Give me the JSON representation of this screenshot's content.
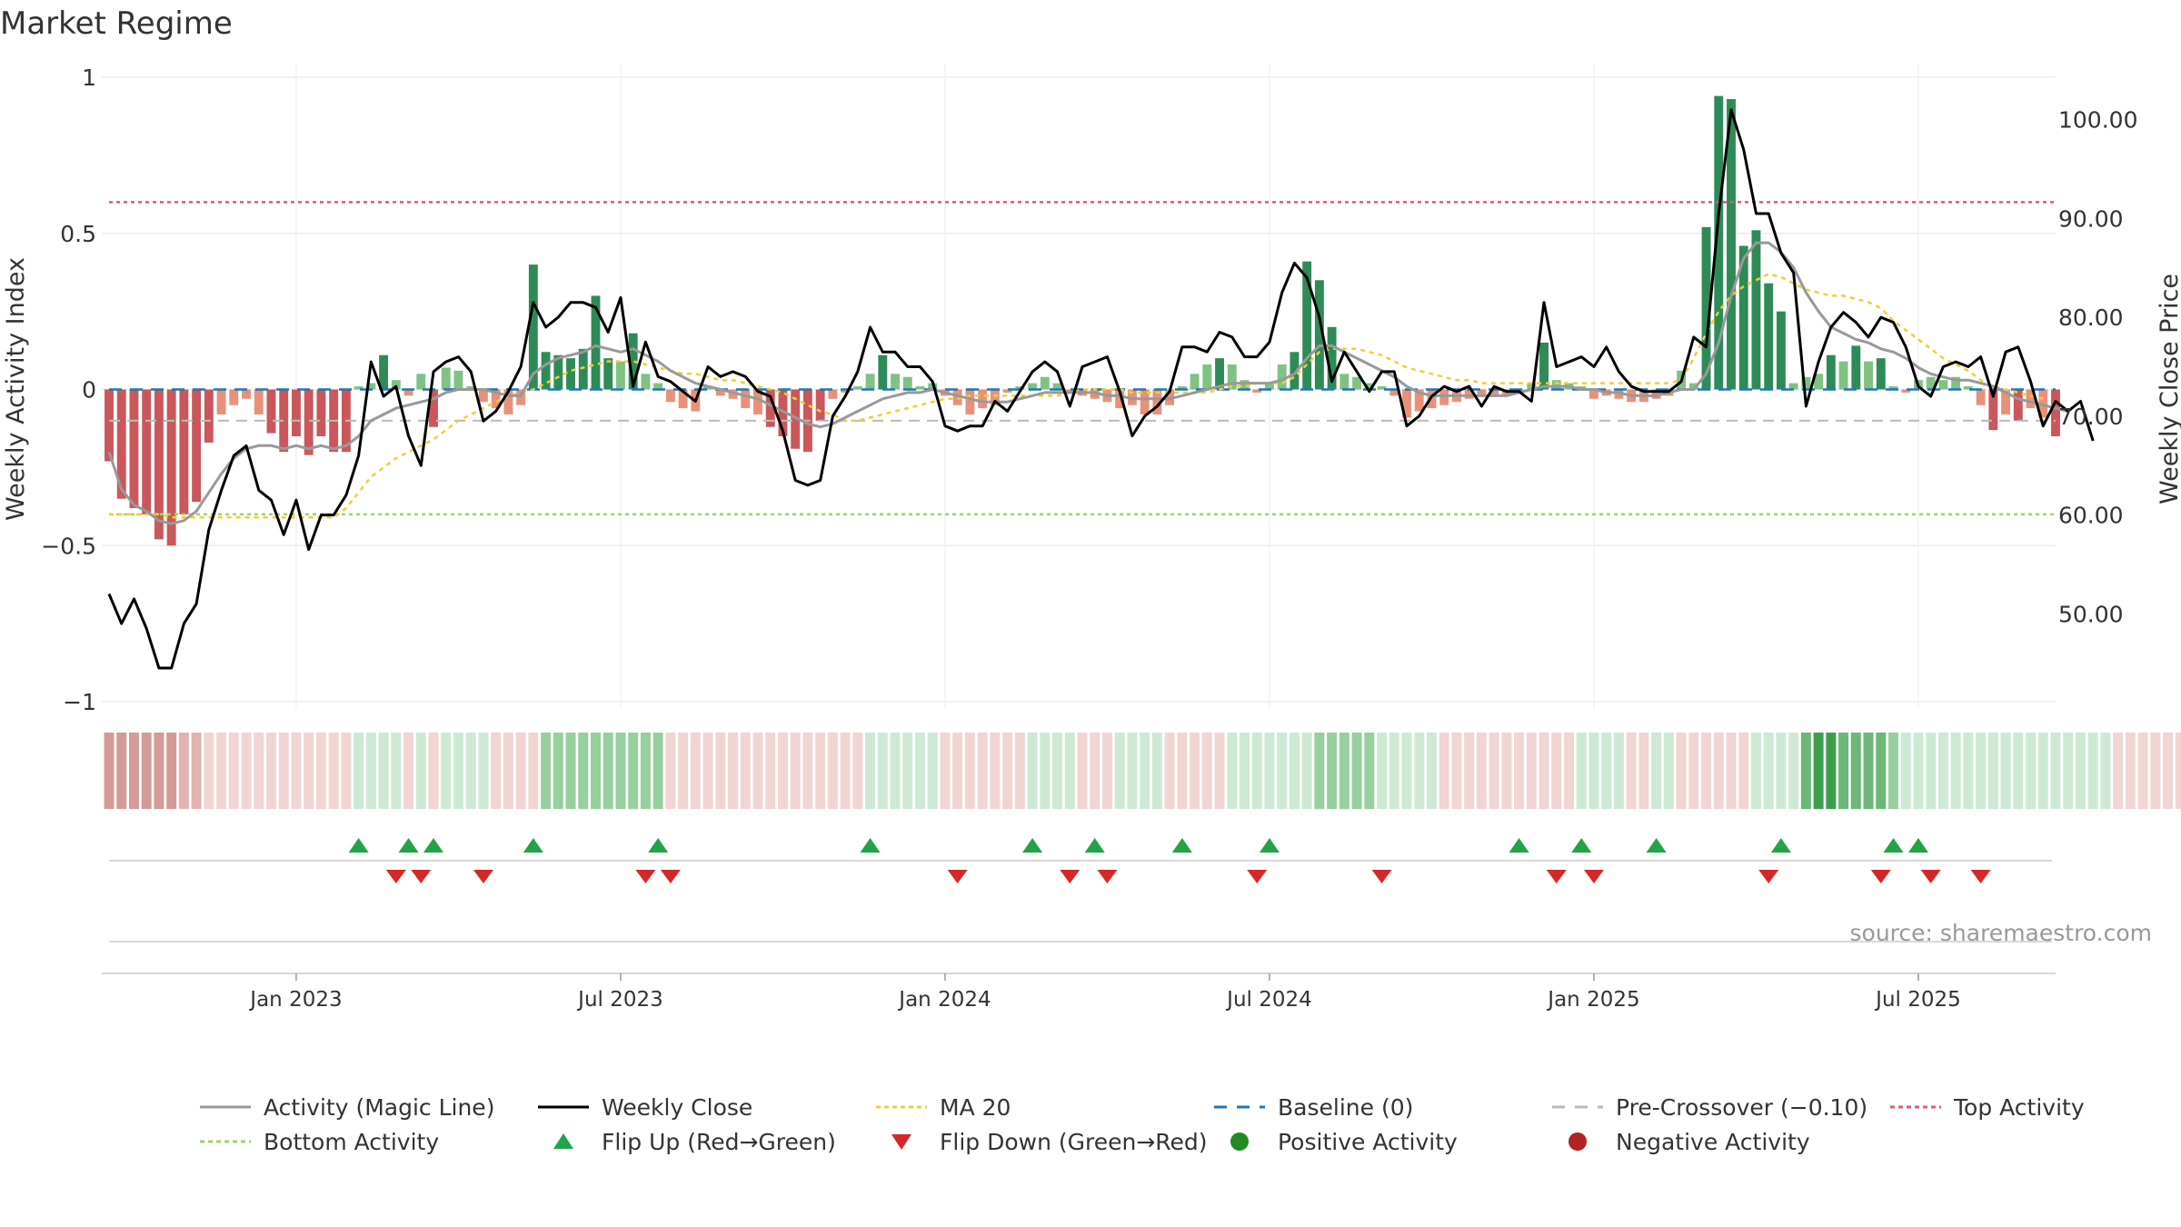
{
  "chart_data": {
    "type": "bar",
    "title": "Market Regime",
    "source": "source: sharemaestro.com",
    "y_left": {
      "label": "Weekly Activity Index",
      "min": -1,
      "max": 1,
      "ticks": [
        1,
        0.5,
        0,
        -0.5,
        -1
      ],
      "tick_labels": [
        "1",
        "0.5",
        "0",
        "−0.5",
        "−1"
      ]
    },
    "y_right": {
      "label": "Weekly Close Price",
      "min": 41.1,
      "max": 104.3,
      "ticks": [
        100,
        90,
        80,
        70,
        60,
        50
      ],
      "tick_labels": [
        "100.00",
        "90.00",
        "80.00",
        "70.00",
        "60.00",
        "50.00"
      ]
    },
    "x_ticks": [
      {
        "label": "Jan 2023",
        "week": 15
      },
      {
        "label": "Jul 2023",
        "week": 41
      },
      {
        "label": "Jan 2024",
        "week": 67
      },
      {
        "label": "Jul 2024",
        "week": 93
      },
      {
        "label": "Jan 2025",
        "week": 119
      },
      {
        "label": "Jul 2025",
        "week": 145
      }
    ],
    "reference_lines": {
      "top_activity": 0.6,
      "bottom_activity": -0.4,
      "pre_crossover": -0.1,
      "baseline": 0
    },
    "activity": [
      -0.23,
      -0.35,
      -0.38,
      -0.4,
      -0.48,
      -0.5,
      -0.4,
      -0.36,
      -0.17,
      -0.08,
      -0.05,
      -0.03,
      -0.08,
      -0.14,
      -0.2,
      -0.15,
      -0.21,
      -0.15,
      -0.2,
      -0.2,
      0.01,
      0.02,
      0.11,
      0.03,
      -0.02,
      0.05,
      -0.12,
      0.07,
      0.06,
      0.01,
      -0.04,
      -0.06,
      -0.08,
      -0.05,
      0.4,
      0.12,
      0.11,
      0.1,
      0.13,
      0.3,
      0.1,
      0.09,
      0.18,
      0.05,
      0.02,
      -0.04,
      -0.06,
      -0.07,
      0.01,
      -0.02,
      -0.03,
      -0.06,
      -0.08,
      -0.12,
      -0.15,
      -0.19,
      -0.2,
      -0.1,
      -0.03,
      -0.01,
      0.01,
      0.05,
      0.11,
      0.05,
      0.04,
      0.01,
      0.02,
      -0.02,
      -0.05,
      -0.08,
      -0.06,
      -0.05,
      -0.01,
      0.01,
      0.02,
      0.04,
      0.02,
      -0.01,
      -0.02,
      -0.03,
      -0.04,
      -0.06,
      -0.05,
      -0.08,
      -0.08,
      -0.05,
      0.01,
      0.05,
      0.08,
      0.1,
      0.08,
      0.03,
      -0.01,
      0.02,
      0.08,
      0.12,
      0.41,
      0.35,
      0.2,
      0.05,
      0.04,
      0.02,
      0.01,
      -0.02,
      -0.09,
      -0.07,
      -0.06,
      -0.05,
      -0.04,
      -0.03,
      -0.02,
      -0.02,
      -0.02,
      -0.01,
      0.02,
      0.15,
      0.03,
      0.02,
      0.01,
      -0.03,
      -0.02,
      -0.03,
      -0.04,
      -0.04,
      -0.03,
      -0.02,
      0.06,
      0.02,
      0.52,
      0.94,
      0.93,
      0.46,
      0.51,
      0.34,
      0.25,
      0.02,
      0.04,
      0.05,
      0.11,
      0.09,
      0.14,
      0.09,
      0.1,
      0.01,
      -0.01,
      0.03,
      0.04,
      0.03,
      0.04,
      0.01,
      -0.05,
      -0.13,
      -0.08,
      -0.1,
      -0.06,
      -0.09,
      -0.15
    ],
    "magic_line": [
      -0.2,
      -0.32,
      -0.37,
      -0.39,
      -0.42,
      -0.43,
      -0.42,
      -0.39,
      -0.33,
      -0.27,
      -0.22,
      -0.19,
      -0.18,
      -0.18,
      -0.19,
      -0.18,
      -0.19,
      -0.18,
      -0.19,
      -0.18,
      -0.15,
      -0.1,
      -0.08,
      -0.06,
      -0.05,
      -0.04,
      -0.03,
      -0.01,
      0.0,
      0.0,
      0.0,
      -0.01,
      -0.02,
      -0.02,
      0.05,
      0.08,
      0.1,
      0.11,
      0.12,
      0.14,
      0.13,
      0.12,
      0.13,
      0.11,
      0.09,
      0.06,
      0.04,
      0.02,
      0.01,
      0.0,
      -0.01,
      -0.02,
      -0.03,
      -0.05,
      -0.07,
      -0.09,
      -0.11,
      -0.12,
      -0.11,
      -0.09,
      -0.07,
      -0.05,
      -0.03,
      -0.02,
      -0.01,
      -0.01,
      0.0,
      -0.01,
      -0.02,
      -0.03,
      -0.04,
      -0.04,
      -0.04,
      -0.03,
      -0.02,
      -0.01,
      -0.01,
      -0.01,
      -0.01,
      -0.01,
      -0.02,
      -0.02,
      -0.03,
      -0.03,
      -0.03,
      -0.03,
      -0.02,
      -0.01,
      0.0,
      0.01,
      0.02,
      0.02,
      0.02,
      0.02,
      0.03,
      0.05,
      0.1,
      0.14,
      0.14,
      0.12,
      0.1,
      0.08,
      0.06,
      0.04,
      0.01,
      -0.01,
      -0.02,
      -0.02,
      -0.02,
      -0.02,
      -0.02,
      -0.02,
      -0.02,
      -0.01,
      0.0,
      0.01,
      0.01,
      0.01,
      0.0,
      0.0,
      -0.01,
      -0.01,
      -0.02,
      -0.02,
      -0.02,
      -0.01,
      0.0,
      0.0,
      0.05,
      0.15,
      0.3,
      0.42,
      0.47,
      0.47,
      0.44,
      0.39,
      0.31,
      0.25,
      0.2,
      0.18,
      0.16,
      0.15,
      0.13,
      0.12,
      0.1,
      0.07,
      0.05,
      0.04,
      0.03,
      0.03,
      0.02,
      0.01,
      -0.01,
      -0.03,
      -0.04,
      -0.05,
      -0.06,
      -0.07
    ],
    "ma20": [
      -0.4,
      -0.4,
      -0.4,
      -0.4,
      -0.4,
      -0.41,
      -0.41,
      -0.41,
      -0.41,
      -0.41,
      -0.41,
      -0.41,
      -0.41,
      -0.41,
      -0.41,
      -0.41,
      -0.41,
      -0.41,
      -0.41,
      -0.38,
      -0.33,
      -0.28,
      -0.25,
      -0.22,
      -0.2,
      -0.18,
      -0.16,
      -0.13,
      -0.1,
      -0.08,
      -0.06,
      -0.04,
      -0.02,
      -0.01,
      0.0,
      0.02,
      0.04,
      0.06,
      0.07,
      0.08,
      0.09,
      0.09,
      0.09,
      0.08,
      0.07,
      0.06,
      0.05,
      0.05,
      0.04,
      0.03,
      0.03,
      0.02,
      0.01,
      0.0,
      -0.01,
      -0.03,
      -0.05,
      -0.07,
      -0.08,
      -0.1,
      -0.1,
      -0.09,
      -0.08,
      -0.07,
      -0.06,
      -0.05,
      -0.04,
      -0.03,
      -0.03,
      -0.02,
      -0.02,
      -0.02,
      -0.02,
      -0.02,
      -0.02,
      -0.02,
      -0.02,
      -0.01,
      0.0,
      0.0,
      0.0,
      0.0,
      -0.01,
      -0.01,
      -0.01,
      -0.01,
      -0.01,
      -0.01,
      -0.01,
      0.0,
      0.01,
      0.01,
      0.02,
      0.02,
      0.02,
      0.04,
      0.08,
      0.12,
      0.13,
      0.13,
      0.13,
      0.12,
      0.11,
      0.09,
      0.07,
      0.06,
      0.05,
      0.04,
      0.03,
      0.03,
      0.02,
      0.02,
      0.02,
      0.02,
      0.02,
      0.02,
      0.02,
      0.02,
      0.02,
      0.02,
      0.02,
      0.02,
      0.02,
      0.02,
      0.02,
      0.02,
      0.03,
      0.1,
      0.18,
      0.25,
      0.3,
      0.33,
      0.35,
      0.37,
      0.36,
      0.34,
      0.32,
      0.31,
      0.3,
      0.3,
      0.29,
      0.28,
      0.26,
      0.22,
      0.19,
      0.16,
      0.13,
      0.1,
      0.08,
      0.06,
      0.03,
      0.01,
      0.0,
      -0.01,
      -0.02,
      -0.03
    ],
    "weekly_close": [
      52.0,
      49.0,
      51.5,
      48.5,
      44.5,
      44.5,
      49.0,
      51.0,
      58.5,
      62.5,
      66.0,
      67.0,
      62.5,
      61.5,
      58.0,
      61.5,
      56.5,
      60.0,
      60.0,
      62.0,
      66.0,
      75.5,
      72.0,
      73.0,
      68.0,
      65.0,
      74.5,
      75.5,
      76.0,
      74.5,
      69.5,
      70.5,
      72.5,
      75.0,
      81.5,
      79.0,
      80.0,
      81.5,
      81.5,
      81.0,
      78.5,
      82.0,
      73.0,
      77.5,
      74.0,
      73.5,
      72.5,
      71.5,
      75.0,
      74.0,
      74.5,
      74.0,
      72.5,
      72.0,
      68.5,
      63.5,
      63.0,
      63.5,
      70.0,
      72.0,
      74.5,
      79.0,
      76.5,
      76.5,
      75.0,
      75.0,
      73.5,
      69.0,
      68.5,
      69.0,
      69.0,
      71.5,
      70.5,
      72.5,
      74.5,
      75.5,
      74.5,
      71.0,
      75.0,
      75.5,
      76.0,
      72.5,
      68.0,
      70.0,
      71.0,
      72.5,
      77.0,
      77.0,
      76.5,
      78.5,
      78.0,
      76.0,
      76.0,
      77.5,
      82.5,
      85.5,
      84.0,
      80.0,
      73.5,
      76.5,
      74.5,
      72.5,
      74.5,
      74.5,
      69.0,
      70.0,
      72.0,
      73.0,
      72.5,
      73.0,
      71.0,
      73.0,
      72.5,
      72.5,
      71.5,
      81.5,
      75.0,
      75.5,
      76.0,
      75.0,
      77.0,
      74.5,
      73.0,
      72.5,
      72.5,
      72.5,
      73.5,
      78.0,
      77.0,
      90.5,
      101.0,
      97.0,
      90.5,
      90.5,
      86.5,
      84.5,
      71.0,
      75.5,
      79.0,
      80.5,
      79.5,
      78.0,
      80.0,
      79.5,
      77.0,
      73.0,
      72.0,
      75.0,
      75.5,
      75.0,
      76.0,
      72.0,
      76.5,
      77.0,
      73.5,
      69.0,
      71.5,
      70.5,
      71.5,
      67.5
    ],
    "regime_band": [
      -3,
      -3,
      -3,
      -3,
      -3,
      -3,
      -2,
      -2,
      -1,
      -1,
      -1,
      -1,
      -1,
      -1,
      -1,
      -1,
      -1,
      -1,
      -1,
      -1,
      1,
      1,
      1,
      1,
      -1,
      1,
      -1,
      1,
      1,
      1,
      1,
      -1,
      -1,
      -1,
      -1,
      2,
      2,
      2,
      2,
      2,
      2,
      2,
      2,
      2,
      2,
      -1,
      -1,
      -1,
      -1,
      -1,
      -1,
      -1,
      -1,
      -1,
      -1,
      -1,
      -1,
      -1,
      -1,
      -1,
      -1,
      1,
      1,
      1,
      1,
      1,
      1,
      -1,
      -1,
      -1,
      -1,
      -1,
      -1,
      -1,
      1,
      1,
      1,
      1,
      -1,
      -1,
      -1,
      1,
      1,
      1,
      1,
      -1,
      -1,
      -1,
      -1,
      -1,
      1,
      1,
      1,
      1,
      1,
      1,
      1,
      2,
      2,
      2,
      2,
      2,
      1,
      1,
      1,
      1,
      1,
      -1,
      -1,
      -1,
      -1,
      -1,
      -1,
      -1,
      -1,
      -1,
      -1,
      -1,
      1,
      1,
      1,
      1,
      -1,
      -1,
      1,
      1,
      -1,
      -1,
      -1,
      -1,
      -1,
      -1,
      1,
      1,
      1,
      1,
      3,
      4,
      4,
      3,
      3,
      3,
      3,
      2,
      1,
      1,
      1,
      1,
      1,
      1,
      1,
      1,
      1,
      1,
      1,
      1,
      1,
      1,
      1,
      1,
      1,
      -1,
      -1,
      -1,
      -1,
      -1,
      -1,
      -1
    ],
    "flip_up_weeks": [
      20,
      24,
      26,
      34,
      44,
      61,
      74,
      79,
      86,
      93,
      113,
      118,
      124,
      134,
      143,
      145
    ],
    "flip_down_weeks": [
      23,
      25,
      30,
      43,
      45,
      68,
      77,
      80,
      92,
      102,
      116,
      119,
      133,
      142,
      146,
      150
    ]
  },
  "legend": [
    {
      "label": "Activity (Magic Line)",
      "icon": "line",
      "color": "#999999"
    },
    {
      "label": "Weekly Close",
      "icon": "line",
      "color": "#000000"
    },
    {
      "label": "MA 20",
      "icon": "dotted-line",
      "color": "#f0d030"
    },
    {
      "label": "Baseline (0)",
      "icon": "dashed-line",
      "color": "#1f77b4"
    },
    {
      "label": "Pre-Crossover (−0.10)",
      "icon": "dashed-line",
      "color": "#bbbbbb"
    },
    {
      "label": "Top Activity",
      "icon": "dotted-line",
      "color": "#e05a74"
    },
    {
      "label": "Bottom Activity",
      "icon": "dotted-line",
      "color": "#9ed36a"
    },
    {
      "label": "Flip Up (Red→Green)",
      "icon": "triangle-up",
      "color": "#22a34a"
    },
    {
      "label": "Flip Down (Green→Red)",
      "icon": "triangle-down",
      "color": "#d62728"
    },
    {
      "label": "Positive Activity",
      "icon": "circle",
      "color": "#228b22"
    },
    {
      "label": "Negative Activity",
      "icon": "circle",
      "color": "#b22222"
    }
  ],
  "colors": {
    "positive_dark": "#2e8b57",
    "positive_light": "#7fc283",
    "negative_dark": "#c9575c",
    "negative_light": "#e8917a",
    "flip_up": "#22a34a",
    "flip_down": "#d62728"
  }
}
